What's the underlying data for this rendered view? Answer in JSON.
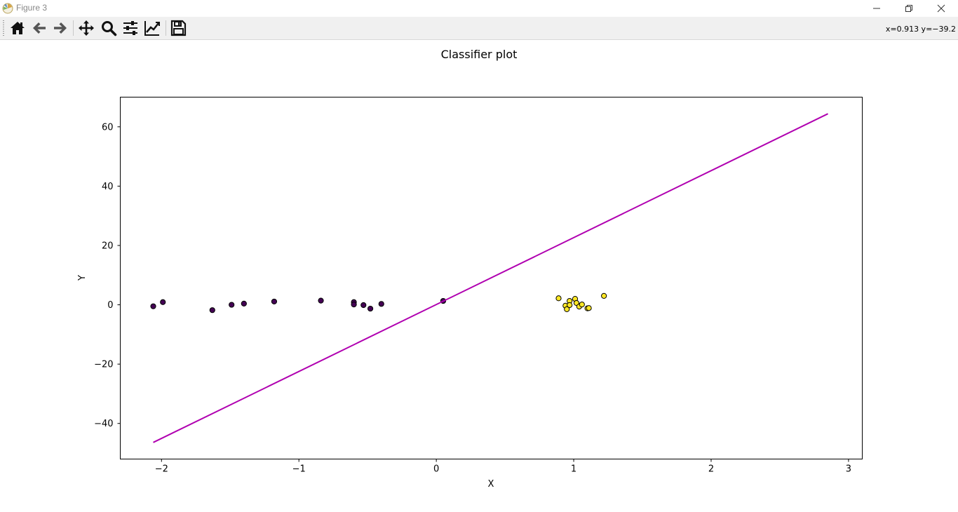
{
  "window": {
    "title": "Figure 3"
  },
  "toolbar": {
    "buttons": [
      {
        "name": "home-icon"
      },
      {
        "name": "back-icon"
      },
      {
        "name": "forward-icon"
      },
      {
        "name": "pan-icon"
      },
      {
        "name": "zoom-icon"
      },
      {
        "name": "configure-subplots-icon"
      },
      {
        "name": "edit-axis-icon"
      },
      {
        "name": "save-icon"
      }
    ],
    "coords": "x=0.913 y=−39.2"
  },
  "chart_data": {
    "type": "scatter",
    "title": "Classifier plot",
    "xlabel": "X",
    "ylabel": "Y",
    "xlim": [
      -2.3,
      3.1
    ],
    "ylim": [
      -52,
      70
    ],
    "xticks": [
      -2,
      -1,
      0,
      1,
      2,
      3
    ],
    "xtick_labels": [
      "−2",
      "−1",
      "0",
      "1",
      "2",
      "3"
    ],
    "yticks": [
      -40,
      -20,
      0,
      20,
      40,
      60
    ],
    "ytick_labels": [
      "−40",
      "−20",
      "0",
      "20",
      "40",
      "60"
    ],
    "grid": false,
    "series": [
      {
        "color": "#440154",
        "points": [
          [
            -2.06,
            -0.5
          ],
          [
            -1.99,
            0.9
          ],
          [
            -1.63,
            -1.8
          ],
          [
            -1.49,
            0.0
          ],
          [
            -1.4,
            0.4
          ],
          [
            -1.18,
            1.1
          ],
          [
            -0.84,
            1.4
          ],
          [
            -0.6,
            0.9
          ],
          [
            -0.6,
            0.1
          ],
          [
            -0.53,
            -0.1
          ],
          [
            -0.48,
            -1.3
          ],
          [
            -0.4,
            0.3
          ],
          [
            0.05,
            1.3
          ]
        ]
      },
      {
        "color": "#fde725",
        "points": [
          [
            0.89,
            2.2
          ],
          [
            0.94,
            -0.3
          ],
          [
            0.95,
            -1.5
          ],
          [
            0.97,
            1.3
          ],
          [
            0.97,
            -0.1
          ],
          [
            1.01,
            2.0
          ],
          [
            1.02,
            0.6
          ],
          [
            1.04,
            -0.6
          ],
          [
            1.06,
            0.1
          ],
          [
            1.1,
            -1.2
          ],
          [
            1.11,
            -1.1
          ],
          [
            1.22,
            3.0
          ]
        ]
      }
    ],
    "line": {
      "color": "#b000b0",
      "x": [
        -2.06,
        2.85
      ],
      "y": [
        -46.4,
        64.4
      ]
    }
  }
}
